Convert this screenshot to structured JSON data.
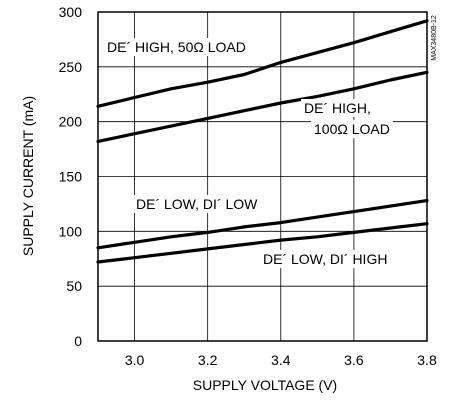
{
  "chart_data": {
    "type": "line",
    "xlabel": "SUPPLY VOLTAGE (V)",
    "ylabel": "SUPPLY CURRENT (mA)",
    "xlim": [
      2.9,
      3.8
    ],
    "ylim": [
      0,
      300
    ],
    "x_ticks": [
      3.0,
      3.2,
      3.4,
      3.6,
      3.8
    ],
    "x_tick_labels": [
      "3.0",
      "3.2",
      "3.4",
      "3.6",
      "3.8"
    ],
    "y_ticks": [
      0,
      50,
      100,
      150,
      200,
      250,
      300
    ],
    "y_tick_labels": [
      "0",
      "50",
      "100",
      "150",
      "200",
      "250",
      "300"
    ],
    "grid": true,
    "line_color": "#000000",
    "side_note": "MAX3480B-12",
    "series": [
      {
        "name": "DE´ HIGH, 50Ω LOAD",
        "x": [
          2.9,
          3.0,
          3.1,
          3.2,
          3.3,
          3.4,
          3.5,
          3.6,
          3.7,
          3.8
        ],
        "y": [
          214,
          222,
          230,
          236,
          243,
          254,
          263,
          272,
          282,
          292
        ]
      },
      {
        "name": "DE´ HIGH, 100Ω LOAD",
        "x": [
          2.9,
          3.0,
          3.1,
          3.2,
          3.3,
          3.4,
          3.5,
          3.6,
          3.7,
          3.8
        ],
        "y": [
          182,
          189,
          196,
          203,
          210,
          217,
          223,
          230,
          238,
          245
        ]
      },
      {
        "name": "DE´ LOW, DI´ LOW",
        "x": [
          2.9,
          3.0,
          3.1,
          3.2,
          3.3,
          3.4,
          3.5,
          3.6,
          3.7,
          3.8
        ],
        "y": [
          85,
          90,
          95,
          99,
          104,
          108,
          113,
          118,
          123,
          128
        ]
      },
      {
        "name": "DE´ LOW, DI´ HIGH",
        "x": [
          2.9,
          3.0,
          3.1,
          3.2,
          3.3,
          3.4,
          3.5,
          3.6,
          3.7,
          3.8
        ],
        "y": [
          72,
          76,
          80,
          84,
          88,
          92,
          95,
          99,
          103,
          107
        ]
      }
    ]
  }
}
